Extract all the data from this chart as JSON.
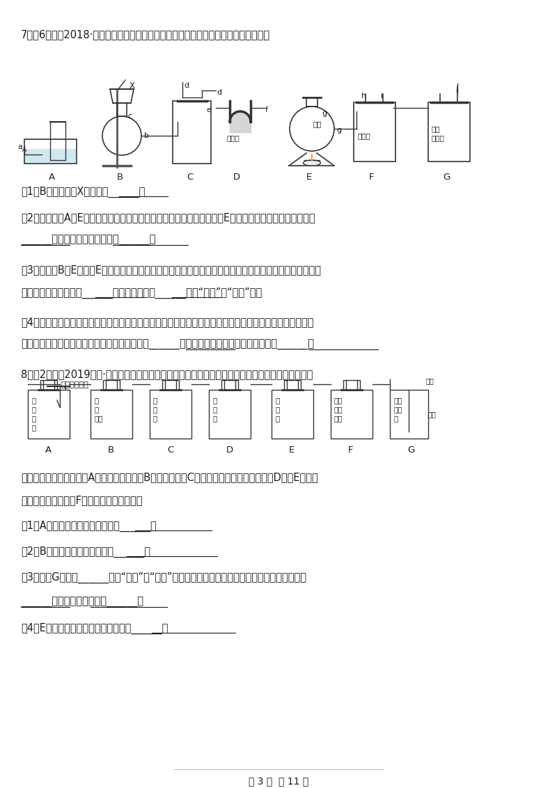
{
  "background_color": "#ffffff",
  "text_color": "#1a1a1a",
  "page_footer": "第 3 页  共 11 页",
  "q7_header": "7．（6分）（2018·单县模拟）下列是初中化学常见的仪器和装置，请回答相关问题。",
  "q7_sub1": "（1）B装置中仪器X的名称是______。",
  "q7_sub2_line1": "（2）若将装置A和E（药品为高锴酸钞）连接制取并收集氧气，其中装置E中的试管口略向下倾斜的目的是",
  "q7_sub2_line2": "______，该反应的化学方程式为______。",
  "q7_sub3_line1": "（3）向装置B、E（此时E中去掉棉花）中分别加入药品都可以制得氧气，如果两个反应都用到同一种试剂，",
  "q7_sub3_line2": "这种相同的试剂一般是______，该试剂的作用______（填“相同”或“不同”）。",
  "q7_sub4_line1": "（4）　实验室用大理石和稀盐酸制取并收集一瓶干燥的二氧化碗，同时检验二氧化碗。请按照气流流动（开",
  "q7_sub4_line2": "始到末尾）方向，用仪器接口字母表示连接顺序______；制取二氧化碗的化学反应方程式为______。",
  "q8_header": "8．（2分）（2019九上·江油期末）某化学兴趣小组进行如下组合实验，对二氧化碗的性质进行验证。",
  "q8_desc_line1": "当打开分液漏斗活塞后，A中出现大量气泡，B中白磷燃烧，C中液面下降，稀盐酸逐渐进入D中。E处紫色",
  "q8_desc_line2": "石蕊溶液变成红色，F处澄清石灰水变浑浊。",
  "q8_sub1": "（1）A中发生反应的化学方程式为______。",
  "q8_sub2": "（2）B中白磷能够燃烧的原因是______；",
  "q8_sub3_line1": "（3）　　G烧杯中______（填“上层”或“下层”）的腊烛先息灭，说明二氧化碗具有的物理性质是",
  "q8_sub3_line2": "______，具有的化学性质是______。",
  "q8_sub4": "（4）E处使紫色石蕊变成红色的物质是______；",
  "font_size_main": 10.5,
  "font_size_footer": 10
}
